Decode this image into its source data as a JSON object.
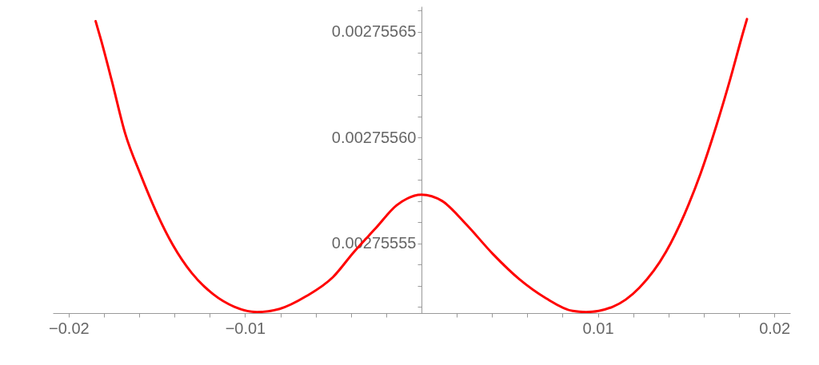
{
  "chart_data": {
    "type": "line",
    "marker": "none",
    "line_style": "solid",
    "grid": false,
    "xlim": [
      -0.0209,
      0.0209
    ],
    "ylim": [
      0.002755517,
      0.002755662
    ],
    "xticks": [
      {
        "value": -0.02,
        "label": "−0.02"
      },
      {
        "value": -0.018,
        "label": null
      },
      {
        "value": -0.016,
        "label": null
      },
      {
        "value": -0.014,
        "label": null
      },
      {
        "value": -0.012,
        "label": null
      },
      {
        "value": -0.01,
        "label": "−0.01"
      },
      {
        "value": -0.008,
        "label": null
      },
      {
        "value": -0.006,
        "label": null
      },
      {
        "value": -0.004,
        "label": null
      },
      {
        "value": -0.002,
        "label": null
      },
      {
        "value": 0.002,
        "label": null
      },
      {
        "value": 0.004,
        "label": null
      },
      {
        "value": 0.006,
        "label": null
      },
      {
        "value": 0.008,
        "label": null
      },
      {
        "value": 0.01,
        "label": "0.01"
      },
      {
        "value": 0.012,
        "label": null
      },
      {
        "value": 0.014,
        "label": null
      },
      {
        "value": 0.016,
        "label": null
      },
      {
        "value": 0.018,
        "label": null
      },
      {
        "value": 0.02,
        "label": "0.02"
      }
    ],
    "yticks": [
      {
        "value": 0.00275552,
        "label": null
      },
      {
        "value": 0.00275553,
        "label": null
      },
      {
        "value": 0.00275554,
        "label": null
      },
      {
        "value": 0.00275555,
        "label": "0.00275555"
      },
      {
        "value": 0.00275556,
        "label": null
      },
      {
        "value": 0.00275557,
        "label": null
      },
      {
        "value": 0.00275558,
        "label": null
      },
      {
        "value": 0.00275559,
        "label": null
      },
      {
        "value": 0.0027556,
        "label": "0.00275560"
      },
      {
        "value": 0.00275561,
        "label": null
      },
      {
        "value": 0.00275562,
        "label": null
      },
      {
        "value": 0.00275563,
        "label": null
      },
      {
        "value": 0.00275564,
        "label": null
      },
      {
        "value": 0.00275565,
        "label": "0.00275565"
      },
      {
        "value": 0.00275566,
        "label": null
      }
    ],
    "series": [
      {
        "color": "#ff0000",
        "x": [
          -0.01847,
          -0.01816,
          -0.01756,
          -0.0168,
          -0.0159,
          -0.01499,
          -0.01408,
          -0.01303,
          -0.01182,
          -0.01061,
          -0.00933,
          -0.00804,
          -0.00653,
          -0.00502,
          -0.00382,
          -0.00261,
          -0.0014,
          0,
          0.00117,
          0.00253,
          0.00404,
          0.00555,
          0.00706,
          0.00857,
          0.00933,
          0.01084,
          0.01235,
          0.01386,
          0.01492,
          0.01582,
          0.01673,
          0.01748,
          0.01824,
          0.01845
        ],
        "values": [
          0.002755655,
          0.002755646,
          0.002755627,
          0.002755602,
          0.002755582,
          0.002755564,
          0.002755549,
          0.002755536,
          0.002755526,
          0.00275552,
          0.0027555175,
          0.002755519,
          0.002755525,
          0.002755534,
          0.002755546,
          0.002755557,
          0.002755568,
          0.002755573,
          0.00275557,
          0.002755559,
          0.002755545,
          0.002755533,
          0.002755524,
          0.002755518,
          0.0027555175,
          0.00275552,
          0.002755529,
          0.002755546,
          0.002755564,
          0.002755583,
          0.002755606,
          0.002755627,
          0.00275565,
          0.002755656
        ]
      }
    ]
  }
}
